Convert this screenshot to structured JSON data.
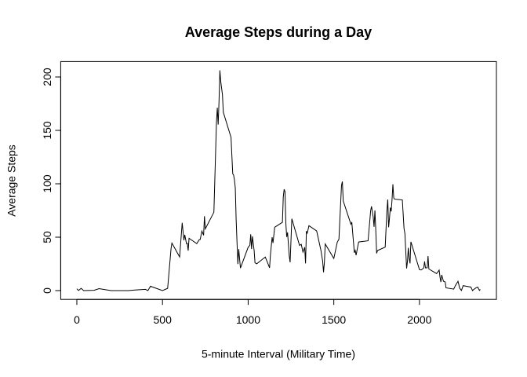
{
  "chart_data": {
    "type": "line",
    "title": "Average Steps during a Day",
    "x_label": "5-minute Interval (Military Time)",
    "y_label": "Average Steps",
    "color": "#000000",
    "x": [
      0,
      10,
      25,
      40,
      55,
      100,
      130,
      200,
      300,
      340,
      400,
      415,
      430,
      440,
      500,
      530,
      550,
      555,
      600,
      615,
      625,
      630,
      640,
      645,
      650,
      655,
      700,
      715,
      720,
      730,
      740,
      745,
      750,
      800,
      810,
      815,
      820,
      825,
      830,
      835,
      840,
      850,
      855,
      900,
      910,
      915,
      920,
      925,
      930,
      935,
      940,
      945,
      955,
      1000,
      1010,
      1015,
      1020,
      1025,
      1035,
      1040,
      1050,
      1100,
      1115,
      1125,
      1130,
      1140,
      1145,
      1155,
      1200,
      1205,
      1210,
      1215,
      1220,
      1225,
      1230,
      1240,
      1245,
      1255,
      1300,
      1310,
      1320,
      1330,
      1335,
      1340,
      1345,
      1355,
      1400,
      1425,
      1435,
      1440,
      1445,
      1450,
      1500,
      1520,
      1530,
      1535,
      1545,
      1550,
      1555,
      1600,
      1605,
      1620,
      1625,
      1630,
      1645,
      1700,
      1715,
      1720,
      1730,
      1735,
      1740,
      1745,
      1750,
      1755,
      1800,
      1805,
      1810,
      1815,
      1820,
      1825,
      1830,
      1835,
      1840,
      1845,
      1850,
      1855,
      1900,
      1910,
      1915,
      1925,
      1930,
      1935,
      1940,
      1945,
      1950,
      2000,
      2010,
      2025,
      2030,
      2035,
      2045,
      2050,
      2055,
      2100,
      2115,
      2120,
      2125,
      2130,
      2140,
      2150,
      2155,
      2200,
      2210,
      2225,
      2235,
      2245,
      2255,
      2300,
      2310,
      2315,
      2330,
      2340,
      2350,
      2355
    ],
    "values": [
      1.7,
      0.1,
      2.1,
      0,
      0.1,
      0.3,
      1.8,
      0,
      0,
      0.5,
      1.2,
      0,
      4.1,
      3.5,
      0,
      2.1,
      39.5,
      44.5,
      31.5,
      63.5,
      47.1,
      52.2,
      44,
      44.2,
      37.4,
      49,
      44,
      47.8,
      47.8,
      55.7,
      51.8,
      69.6,
      57.8,
      73.4,
      129.4,
      157.5,
      171.2,
      155.4,
      177.3,
      206.2,
      195.9,
      183.4,
      167,
      143.5,
      109.4,
      108.1,
      103.7,
      96,
      66.2,
      45.2,
      24.8,
      38.8,
      21.1,
      40.6,
      42.4,
      52.7,
      38.9,
      50.8,
      37.4,
      26,
      25.1,
      31.4,
      25.5,
      21.3,
      33.3,
      50,
      44.6,
      59.3,
      63.9,
      87.7,
      94.8,
      92.8,
      63.4,
      50.2,
      54.5,
      32.4,
      26.5,
      67.3,
      42.3,
      43.3,
      36.1,
      40.6,
      25.5,
      55.7,
      53.8,
      60.8,
      55.8,
      37.5,
      27.5,
      17.1,
      26.1,
      43.7,
      30,
      45.2,
      48.2,
      65.3,
      98.7,
      102.1,
      84,
      62.1,
      64.1,
      35.5,
      37.6,
      33.1,
      45.5,
      46.6,
      74.7,
      78.9,
      68.9,
      59.7,
      75.1,
      56.5,
      34.8,
      37.5,
      40.7,
      58,
      74.7,
      85.3,
      59.3,
      67.8,
      77.7,
      74.2,
      85.3,
      99.5,
      86.6,
      85.6,
      84.9,
      58,
      53.4,
      20.7,
      27.4,
      40,
      30.2,
      25.5,
      45.7,
      19.6,
      19.3,
      21.2,
      27.3,
      21.3,
      21.3,
      32.3,
      20.2,
      15.9,
      19.2,
      12.5,
      8,
      14.7,
      8.7,
      8.1,
      2.6,
      1.4,
      4.8,
      8.7,
      2.2,
      0.1,
      4.6,
      3.3,
      0,
      0.8,
      2.6,
      3.3,
      0.2,
      1.1
    ],
    "xlim": [
      -94.2,
      2449.2
    ],
    "ylim": [
      -8.25,
      214.42
    ],
    "xticks": [
      0,
      500,
      1000,
      1500,
      2000
    ],
    "yticks": [
      0,
      50,
      100,
      150,
      200
    ]
  }
}
